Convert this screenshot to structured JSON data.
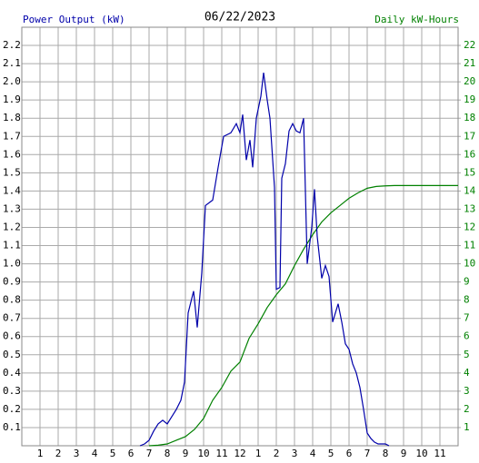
{
  "chart_data": {
    "type": "line",
    "title": "06/22/2023",
    "ylabel": "Power Output (kW)",
    "y2label": "Daily kW-Hours",
    "xlim": [
      0,
      24
    ],
    "xticks": [
      1,
      2,
      3,
      4,
      5,
      6,
      7,
      8,
      9,
      10,
      11,
      12,
      {
        "value": 13,
        "label": "1"
      },
      {
        "value": 14,
        "label": "2"
      },
      {
        "value": 15,
        "label": "3"
      },
      {
        "value": 16,
        "label": "4"
      },
      {
        "value": 17,
        "label": "5"
      },
      {
        "value": 18,
        "label": "6"
      },
      {
        "value": 19,
        "label": "7"
      },
      {
        "value": 20,
        "label": "8"
      },
      {
        "value": 21,
        "label": "9"
      },
      {
        "value": 22,
        "label": "10"
      },
      {
        "value": 23,
        "label": "11"
      }
    ],
    "ylim": [
      0,
      2.3
    ],
    "yticks": [
      0.1,
      0.2,
      0.3,
      0.4,
      0.5,
      0.6,
      0.7,
      0.8,
      0.9,
      {
        "value": 1,
        "label": "1.0"
      },
      1.1,
      1.2,
      1.3,
      1.4,
      1.5,
      1.6,
      1.7,
      1.8,
      1.9,
      {
        "value": 2,
        "label": "2.0"
      },
      2.1,
      2.2
    ],
    "y2lim": [
      0,
      23
    ],
    "y2ticks": [
      1,
      2,
      3,
      4,
      5,
      6,
      7,
      8,
      9,
      10,
      11,
      12,
      13,
      14,
      15,
      16,
      17,
      18,
      19,
      20,
      21,
      22
    ],
    "grid": true,
    "series": [
      {
        "name": "Power Output (kW)",
        "color": "#0000aa",
        "x": [
          6.5,
          6.75,
          7.0,
          7.25,
          7.5,
          7.75,
          8.0,
          8.25,
          8.5,
          8.75,
          8.95,
          9.15,
          9.45,
          9.65,
          9.9,
          10.1,
          10.5,
          10.8,
          11.1,
          11.5,
          11.8,
          12.0,
          12.15,
          12.35,
          12.55,
          12.7,
          12.9,
          13.15,
          13.3,
          13.5,
          13.65,
          13.9,
          14.0,
          14.2,
          14.3,
          14.5,
          14.7,
          14.9,
          15.1,
          15.3,
          15.5,
          15.7,
          15.95,
          16.1,
          16.25,
          16.5,
          16.7,
          16.9,
          17.1,
          17.4,
          17.6,
          17.8,
          18.0,
          18.2,
          18.4,
          18.6,
          18.8,
          19.0,
          19.2,
          19.4,
          19.6,
          20.0,
          20.2
        ],
        "values": [
          0,
          0.01,
          0.03,
          0.08,
          0.12,
          0.14,
          0.12,
          0.16,
          0.2,
          0.25,
          0.35,
          0.73,
          0.85,
          0.65,
          0.95,
          1.32,
          1.35,
          1.53,
          1.7,
          1.72,
          1.77,
          1.72,
          1.82,
          1.57,
          1.68,
          1.53,
          1.8,
          1.92,
          2.05,
          1.9,
          1.8,
          1.42,
          0.86,
          0.87,
          1.47,
          1.55,
          1.73,
          1.77,
          1.73,
          1.72,
          1.8,
          1.0,
          1.2,
          1.41,
          1.15,
          0.92,
          0.99,
          0.93,
          0.68,
          0.78,
          0.68,
          0.56,
          0.53,
          0.45,
          0.4,
          0.32,
          0.2,
          0.07,
          0.04,
          0.02,
          0.01,
          0.01,
          0
        ]
      },
      {
        "name": "Daily kW-Hours",
        "color": "#008000",
        "axis": "y2",
        "x": [
          7.0,
          7.5,
          8.0,
          8.5,
          9.0,
          9.5,
          10.0,
          10.5,
          11.0,
          11.5,
          12.0,
          12.5,
          13.0,
          13.5,
          14.0,
          14.5,
          15.0,
          15.5,
          16.0,
          16.5,
          17.0,
          17.5,
          18.0,
          18.5,
          19.0,
          19.5,
          20.0,
          20.5,
          24.0
        ],
        "values": [
          0,
          0.03,
          0.1,
          0.3,
          0.5,
          0.9,
          1.5,
          2.5,
          3.2,
          4.1,
          4.6,
          5.9,
          6.7,
          7.6,
          8.3,
          8.9,
          9.9,
          10.8,
          11.6,
          12.3,
          12.8,
          13.2,
          13.6,
          13.9,
          14.15,
          14.25,
          14.28,
          14.3,
          14.3
        ]
      }
    ]
  }
}
